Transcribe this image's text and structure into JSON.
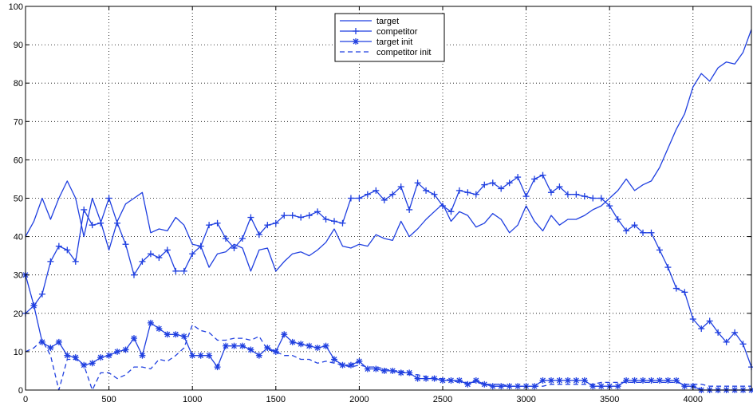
{
  "chart_data": {
    "type": "line",
    "title": "",
    "xlabel": "",
    "ylabel": "",
    "xlim": [
      0,
      4350
    ],
    "ylim": [
      0,
      100
    ],
    "x_ticks": [
      0,
      500,
      1000,
      1500,
      2000,
      2500,
      3000,
      3500,
      4000
    ],
    "y_ticks": [
      0,
      10,
      20,
      30,
      40,
      50,
      60,
      70,
      80,
      90,
      100
    ],
    "x_tick_labels": [
      "0",
      "500",
      "1000",
      "1500",
      "2000",
      "2500",
      "3000",
      "3500",
      "4000"
    ],
    "y_tick_labels": [
      "0",
      "10",
      "20",
      "30",
      "40",
      "50",
      "60",
      "70",
      "80",
      "90",
      "100"
    ],
    "grid": "dotted",
    "legend_position": "top-center",
    "color": "#1f3fe0",
    "series": [
      {
        "name": "target",
        "style": "solid",
        "marker": "none",
        "x": [
          0,
          50,
          100,
          150,
          200,
          250,
          300,
          350,
          400,
          450,
          500,
          550,
          600,
          650,
          700,
          750,
          800,
          850,
          900,
          950,
          1000,
          1050,
          1100,
          1150,
          1200,
          1250,
          1300,
          1350,
          1400,
          1450,
          1500,
          1550,
          1600,
          1650,
          1700,
          1750,
          1800,
          1850,
          1900,
          1950,
          2000,
          2050,
          2100,
          2150,
          2200,
          2250,
          2300,
          2350,
          2400,
          2450,
          2500,
          2550,
          2600,
          2650,
          2700,
          2750,
          2800,
          2850,
          2900,
          2950,
          3000,
          3050,
          3100,
          3150,
          3200,
          3250,
          3300,
          3350,
          3400,
          3450,
          3500,
          3550,
          3600,
          3650,
          3700,
          3750,
          3800,
          3850,
          3900,
          3950,
          4000,
          4050,
          4100,
          4150,
          4200,
          4250,
          4300,
          4350
        ],
        "y": [
          40,
          44,
          50,
          44.5,
          50,
          54.5,
          50,
          40,
          50,
          44,
          36.5,
          44,
          48.5,
          50,
          51.5,
          41,
          42,
          41.5,
          45,
          43,
          38,
          37.5,
          32,
          35.5,
          36,
          38,
          37,
          31,
          36.5,
          37,
          31,
          33.5,
          35.5,
          36,
          35,
          36.5,
          38.5,
          42,
          37.5,
          37,
          38,
          37.5,
          40.5,
          39.5,
          39,
          44,
          40,
          42,
          44.5,
          46.5,
          48.5,
          44,
          46.5,
          45.5,
          42.5,
          43.5,
          46,
          44.5,
          41,
          43,
          48,
          44,
          41.5,
          45.5,
          43,
          44.5,
          44.5,
          45.5,
          47,
          48,
          50,
          52,
          55,
          52,
          53.5,
          54.5,
          58,
          63,
          68,
          72,
          79,
          82.5,
          80.5,
          84,
          85.5,
          85,
          88,
          94
        ]
      },
      {
        "name": "competitor",
        "style": "solid",
        "marker": "plus",
        "x": [
          0,
          50,
          100,
          150,
          200,
          250,
          300,
          350,
          400,
          450,
          500,
          550,
          600,
          650,
          700,
          750,
          800,
          850,
          900,
          950,
          1000,
          1050,
          1100,
          1150,
          1200,
          1250,
          1300,
          1350,
          1400,
          1450,
          1500,
          1550,
          1600,
          1650,
          1700,
          1750,
          1800,
          1850,
          1900,
          1950,
          2000,
          2050,
          2100,
          2150,
          2200,
          2250,
          2300,
          2350,
          2400,
          2450,
          2500,
          2550,
          2600,
          2650,
          2700,
          2750,
          2800,
          2850,
          2900,
          2950,
          3000,
          3050,
          3100,
          3150,
          3200,
          3250,
          3300,
          3350,
          3400,
          3450,
          3500,
          3550,
          3600,
          3650,
          3700,
          3750,
          3800,
          3850,
          3900,
          3950,
          4000,
          4050,
          4100,
          4150,
          4200,
          4250,
          4300,
          4350
        ],
        "y": [
          20,
          22,
          25,
          33.5,
          37.5,
          36.5,
          33.5,
          47,
          43,
          43.5,
          50,
          43.5,
          38,
          30,
          33.5,
          35.5,
          34.5,
          36.5,
          31,
          31,
          35.5,
          37.5,
          43,
          43.5,
          39.5,
          37,
          39.5,
          45,
          40.5,
          43,
          43.5,
          45.5,
          45.5,
          45,
          45.5,
          46.5,
          44.5,
          44,
          43.5,
          50,
          50,
          51,
          52,
          49.5,
          51,
          53,
          47,
          54,
          52,
          51,
          48,
          46.5,
          52,
          51.5,
          51,
          53.5,
          54,
          52.5,
          54,
          55.5,
          50.5,
          55,
          56,
          51.5,
          53,
          51,
          51,
          50.5,
          50,
          50,
          48,
          44.5,
          41.5,
          43,
          41,
          41,
          36.5,
          32,
          26.5,
          25.5,
          18.5,
          16,
          18,
          15,
          12.5,
          15,
          12,
          6
        ]
      },
      {
        "name": "target init",
        "style": "solid",
        "marker": "star",
        "x": [
          0,
          50,
          100,
          150,
          200,
          250,
          300,
          350,
          400,
          450,
          500,
          550,
          600,
          650,
          700,
          750,
          800,
          850,
          900,
          950,
          1000,
          1050,
          1100,
          1150,
          1200,
          1250,
          1300,
          1350,
          1400,
          1450,
          1500,
          1550,
          1600,
          1650,
          1700,
          1750,
          1800,
          1850,
          1900,
          1950,
          2000,
          2050,
          2100,
          2150,
          2200,
          2250,
          2300,
          2350,
          2400,
          2450,
          2500,
          2550,
          2600,
          2650,
          2700,
          2750,
          2800,
          2850,
          2900,
          2950,
          3000,
          3050,
          3100,
          3150,
          3200,
          3250,
          3300,
          3350,
          3400,
          3450,
          3500,
          3550,
          3600,
          3650,
          3700,
          3750,
          3800,
          3850,
          3900,
          3950,
          4000,
          4050,
          4100,
          4150,
          4200,
          4250,
          4300,
          4350
        ],
        "y": [
          30,
          22,
          12.5,
          11,
          12.5,
          9,
          8.5,
          6.5,
          7,
          8.5,
          9,
          10,
          10.5,
          13.5,
          9,
          17.5,
          16,
          14.5,
          14.5,
          14,
          9,
          9,
          9,
          6,
          11.5,
          11.5,
          11.5,
          10.5,
          9,
          11,
          10,
          14.5,
          12.5,
          12,
          11.5,
          11,
          11.5,
          8,
          6.5,
          6.5,
          7.5,
          5.5,
          5.5,
          5,
          5,
          4.5,
          4.5,
          3,
          3,
          3,
          2.5,
          2.5,
          2.5,
          1.5,
          2.5,
          1.5,
          1,
          1,
          1,
          1,
          1,
          1,
          2.5,
          2.5,
          2.5,
          2.5,
          2.5,
          2.5,
          1,
          1,
          1,
          1,
          2.5,
          2.5,
          2.5,
          2.5,
          2.5,
          2.5,
          2.5,
          1,
          1,
          0,
          0,
          0,
          0,
          0,
          0,
          0
        ]
      },
      {
        "name": "competitor init",
        "style": "dashed",
        "marker": "none",
        "x": [
          0,
          50,
          100,
          150,
          200,
          250,
          300,
          350,
          400,
          450,
          500,
          550,
          600,
          650,
          700,
          750,
          800,
          850,
          900,
          950,
          1000,
          1050,
          1100,
          1150,
          1200,
          1250,
          1300,
          1350,
          1400,
          1450,
          1500,
          1550,
          1600,
          1650,
          1700,
          1750,
          1800,
          1850,
          1900,
          1950,
          2000,
          2050,
          2100,
          2150,
          2200,
          2250,
          2300,
          2350,
          2400,
          2450,
          2500,
          2550,
          2600,
          2650,
          2700,
          2750,
          2800,
          2850,
          2900,
          2950,
          3000,
          3050,
          3100,
          3150,
          3200,
          3250,
          3300,
          3350,
          3400,
          3450,
          3500,
          3550,
          3600,
          3650,
          3700,
          3750,
          3800,
          3850,
          3900,
          3950,
          4000,
          4050,
          4100,
          4150,
          4200,
          4250,
          4300,
          4350
        ],
        "y": [
          10,
          11,
          13,
          9,
          0,
          8,
          8,
          6.5,
          0,
          4.5,
          4.5,
          3,
          4,
          6,
          6,
          5.5,
          8,
          7.5,
          9,
          11,
          17,
          15.5,
          15,
          13,
          13,
          13.5,
          13.5,
          13,
          14,
          10.5,
          10,
          9,
          9,
          8,
          8,
          7,
          7.5,
          7,
          6.5,
          6,
          6.5,
          6,
          6,
          5.5,
          5,
          5,
          4,
          4,
          3.5,
          3,
          3,
          2.5,
          2,
          2,
          2,
          1.5,
          1.5,
          1.5,
          1,
          1,
          1,
          1,
          1,
          1.5,
          1.5,
          1.5,
          1.5,
          1.5,
          1.5,
          2,
          2,
          2,
          2,
          2,
          2,
          2,
          2,
          2,
          2,
          1.5,
          1.5,
          1.5,
          1,
          1,
          1,
          1,
          1,
          1
        ]
      }
    ]
  }
}
